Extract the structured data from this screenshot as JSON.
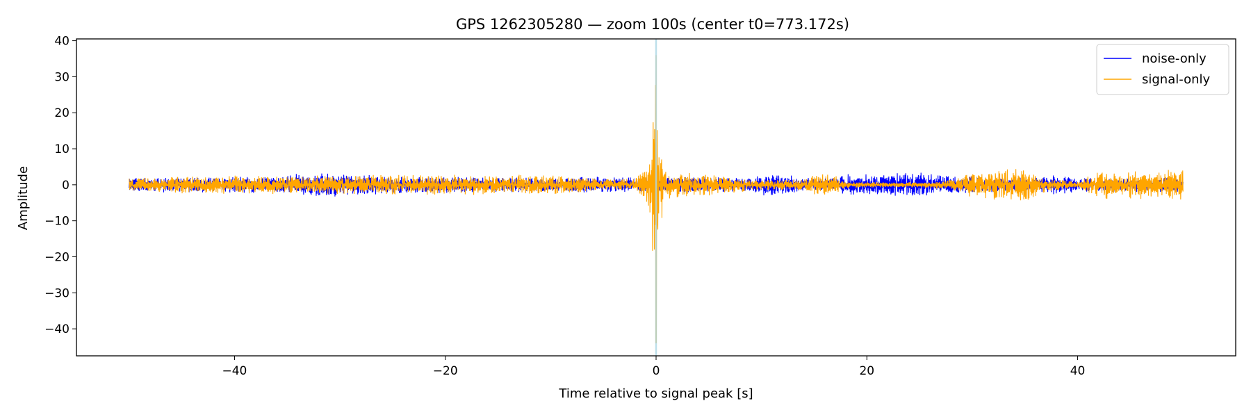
{
  "chart_data": {
    "type": "line",
    "title": "GPS 1262305280 — zoom 100s (center t0=773.172s)",
    "xlabel": "Time relative to signal peak [s]",
    "ylabel": "Amplitude",
    "xlim": [
      -55,
      55
    ],
    "ylim": [
      -47.5,
      40.5
    ],
    "xticks": [
      -40,
      -20,
      0,
      20,
      40
    ],
    "xtick_labels": [
      "−40",
      "−20",
      "0",
      "20",
      "40"
    ],
    "yticks": [
      40,
      30,
      20,
      10,
      0,
      -10,
      -20,
      -30,
      -40
    ],
    "ytick_labels": [
      "40",
      "30",
      "20",
      "10",
      "0",
      "−10",
      "−20",
      "−30",
      "−40"
    ],
    "grid": false,
    "legend_position": "top-right",
    "marker_line": {
      "x": 0,
      "color": "#add8e6"
    },
    "series": [
      {
        "name": "noise-only",
        "color": "#0000ff",
        "envelope": {
          "x": [
            -50,
            -40,
            -36,
            -34,
            -31,
            -25,
            -10,
            -5,
            -2,
            0,
            5,
            9,
            10.5,
            12,
            14,
            17,
            18,
            20,
            22,
            25,
            28,
            33,
            36,
            38,
            40,
            50
          ],
          "amp": [
            2.0,
            2.3,
            2.4,
            3.2,
            3.4,
            2.5,
            2.0,
            2.3,
            2.0,
            2.5,
            2.2,
            2.0,
            3.5,
            3.0,
            2.0,
            2.0,
            3.0,
            3.0,
            3.2,
            3.5,
            2.5,
            2.0,
            2.0,
            3.0,
            2.0,
            2.0
          ]
        }
      },
      {
        "name": "signal-only",
        "color": "#ffa500",
        "envelope": {
          "x": [
            -50,
            -45,
            -35,
            -28,
            -20,
            -12,
            -8,
            -5,
            -2,
            -1,
            -0.5,
            0,
            0.3,
            1,
            2,
            5,
            10,
            14,
            16,
            18,
            20,
            22,
            25,
            28,
            30,
            35,
            37,
            40,
            42,
            50
          ],
          "amp": [
            1.8,
            2.5,
            2.6,
            2.7,
            2.9,
            2.8,
            2.5,
            1.6,
            2.0,
            5.0,
            15.0,
            36.0,
            14.0,
            4.0,
            3.5,
            3.0,
            1.5,
            1.6,
            4.0,
            1.0,
            0.8,
            0.7,
            0.8,
            1.5,
            3.5,
            5.0,
            2.0,
            0.8,
            4.0,
            4.2
          ]
        }
      }
    ]
  }
}
